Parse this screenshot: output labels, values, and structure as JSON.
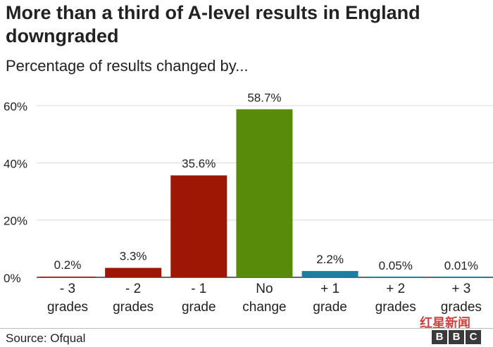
{
  "title": "More than a third of A-level results in England downgraded",
  "subtitle": "Percentage of results changed by...",
  "source": "Source: Ofqual",
  "logo": {
    "letters": [
      "B",
      "B",
      "C"
    ]
  },
  "watermark": "红星新闻",
  "colors": {
    "downgrade": "#9d1704",
    "no_change": "#588b0a",
    "upgrade": "#1a7fa2",
    "grid": "#d9d9d9",
    "axis": "#333333"
  },
  "chart_data": {
    "type": "bar",
    "categories": [
      [
        "- 3",
        "grades"
      ],
      [
        "- 2",
        "grades"
      ],
      [
        "- 1",
        "grade"
      ],
      [
        "No",
        "change"
      ],
      [
        "+ 1",
        "grade"
      ],
      [
        "+ 2",
        "grades"
      ],
      [
        "+ 3",
        "grades"
      ]
    ],
    "values": [
      0.2,
      3.3,
      35.6,
      58.7,
      2.2,
      0.05,
      0.01
    ],
    "value_labels": [
      "0.2%",
      "3.3%",
      "35.6%",
      "58.7%",
      "2.2%",
      "0.05%",
      "0.01%"
    ],
    "bar_color_keys": [
      "downgrade",
      "downgrade",
      "downgrade",
      "no_change",
      "upgrade",
      "upgrade",
      "upgrade"
    ],
    "yticks": [
      0,
      20,
      40,
      60
    ],
    "ytick_labels": [
      "0%",
      "20%",
      "40%",
      "60%"
    ],
    "ylim": [
      0,
      60
    ],
    "grid": true,
    "legend": "none",
    "xlabel": "",
    "ylabel": ""
  }
}
